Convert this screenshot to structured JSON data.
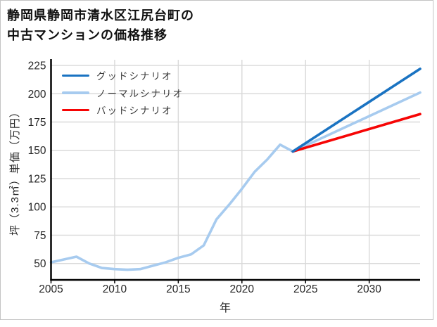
{
  "title": {
    "line1": "静岡県静岡市清水区江尻台町の",
    "line2": "中古マンションの価格推移"
  },
  "legend": {
    "items": [
      {
        "label": "グッドシナリオ",
        "color": "#1a73c2"
      },
      {
        "label": "ノーマルシナリオ",
        "color": "#a7cbef"
      },
      {
        "label": "バッドシナリオ",
        "color": "#f60505"
      }
    ]
  },
  "chart_data": {
    "type": "line",
    "title": "静岡県静岡市清水区江尻台町の中古マンションの価格推移",
    "xlabel": "年",
    "ylabel": "坪（3.3㎡）単価（万円）",
    "x_axis": {
      "min": 2005,
      "max": 2034,
      "ticks": [
        2005,
        2010,
        2015,
        2020,
        2025,
        2030
      ]
    },
    "y_axis": {
      "min": 35.5,
      "max": 230,
      "ticks": [
        50,
        75,
        100,
        125,
        150,
        175,
        200,
        225
      ]
    },
    "grid": true,
    "legend_position": "upper-left",
    "series": [
      {
        "id": "history",
        "label": null,
        "color": "#a7cbef",
        "points": [
          [
            2005,
            51
          ],
          [
            2006,
            53.5
          ],
          [
            2007,
            56
          ],
          [
            2008,
            50
          ],
          [
            2009,
            46
          ],
          [
            2010,
            45
          ],
          [
            2011,
            44.5
          ],
          [
            2012,
            45
          ],
          [
            2013,
            48
          ],
          [
            2014,
            51
          ],
          [
            2015,
            55
          ],
          [
            2016,
            58
          ],
          [
            2017,
            66
          ],
          [
            2018,
            89
          ],
          [
            2019,
            102
          ],
          [
            2020,
            116
          ],
          [
            2021,
            131
          ],
          [
            2022,
            142
          ],
          [
            2023,
            155
          ],
          [
            2024,
            149
          ]
        ]
      },
      {
        "id": "normal-scenario",
        "label": "ノーマルシナリオ",
        "color": "#a7cbef",
        "points": [
          [
            2024,
            149
          ],
          [
            2034,
            201
          ]
        ]
      },
      {
        "id": "bad-scenario",
        "label": "バッドシナリオ",
        "color": "#f60505",
        "points": [
          [
            2024,
            149
          ],
          [
            2034,
            182
          ]
        ]
      },
      {
        "id": "good-scenario",
        "label": "グッドシナリオ",
        "color": "#1a73c2",
        "points": [
          [
            2024,
            149
          ],
          [
            2034,
            222
          ]
        ]
      }
    ]
  },
  "colors": {
    "grid": "#d9d9d9",
    "axis": "#000000",
    "tick_text": "#262626",
    "border": "#c4c4c4",
    "background": "#ffffff"
  }
}
